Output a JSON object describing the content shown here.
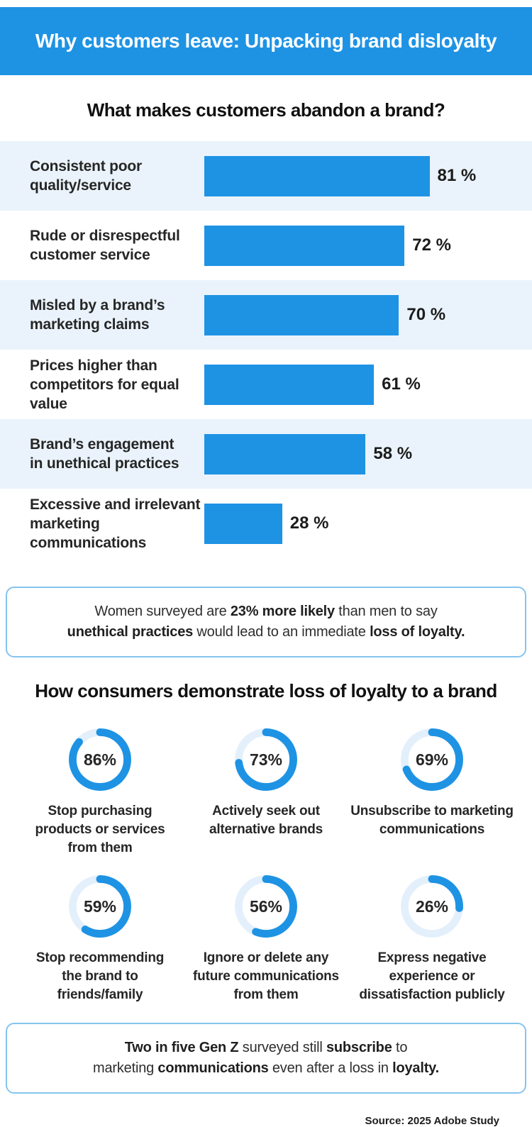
{
  "header": {
    "title": "Why customers leave: Unpacking brand disloyalty"
  },
  "bar_section": {
    "title": "What makes customers abandon a brand?"
  },
  "donut_section": {
    "title": "How consumers demonstrate loss of loyalty to a brand"
  },
  "chart_data": [
    {
      "type": "bar",
      "orientation": "horizontal",
      "title": "What makes customers abandon a brand?",
      "categories": [
        "Consistent poor quality/service",
        "Rude or disrespectful customer service",
        "Misled by a brand’s marketing claims",
        "Prices higher than competitors for equal value",
        "Brand’s engagement in unethical practices",
        "Excessive and irrelevant marketing communications"
      ],
      "category_lines": [
        [
          "Consistent poor",
          "quality/service"
        ],
        [
          "Rude or disrespectful",
          "customer service"
        ],
        [
          "Misled by a brand’s",
          "marketing claims"
        ],
        [
          "Prices higher than",
          "competitors for equal value"
        ],
        [
          "Brand’s engagement",
          "in unethical practices"
        ],
        [
          "Excessive and irrelevant",
          "marketing communications"
        ]
      ],
      "values": [
        81,
        72,
        70,
        61,
        58,
        28
      ],
      "unit": "%",
      "value_label_suffix": " %",
      "xlim": [
        0,
        100
      ],
      "grid": false,
      "bar_color": "#1E93E4"
    },
    {
      "type": "pie",
      "variant": "donut-grid",
      "title": "How consumers demonstrate loss of loyalty to a brand",
      "values": [
        86,
        73,
        69,
        59,
        56,
        26
      ],
      "unit": "%",
      "labels": [
        "Stop purchasing products or services from them",
        "Actively seek out alternative brands",
        "Unsubscribe to marketing communications",
        "Stop recommending the brand to friends/family",
        "Ignore or delete any future communications from them",
        "Express negative experience or dissatisfaction publicly"
      ],
      "label_lines": [
        [
          "Stop purchasing",
          "products or services",
          "from them"
        ],
        [
          "Actively seek out",
          "alternative brands"
        ],
        [
          "Unsubscribe to marketing",
          "communications"
        ],
        [
          "Stop recommending",
          "the brand to",
          "friends/family"
        ],
        [
          "Ignore or delete any",
          "future communications",
          "from them"
        ],
        [
          "Express negative",
          "experience or",
          "dissatisfaction publicly"
        ]
      ],
      "arc_color": "#1E93E4",
      "track_color": "#E3F0FC",
      "legend": "none"
    }
  ],
  "callouts": [
    {
      "name": "women-unethical",
      "lines": [
        [
          {
            "t": "Women surveyed are ",
            "b": 0
          },
          {
            "t": "23% more likely",
            "b": 1
          },
          {
            "t": " than men to say",
            "b": 0
          }
        ],
        [
          {
            "t": "unethical practices",
            "b": 1
          },
          {
            "t": " would lead to an immediate ",
            "b": 0
          },
          {
            "t": "loss of loyalty.",
            "b": 1
          }
        ]
      ]
    },
    {
      "name": "genz-subscribe",
      "lines": [
        [
          {
            "t": "Two in five Gen Z",
            "b": 1
          },
          {
            "t": " surveyed still ",
            "b": 0
          },
          {
            "t": "subscribe",
            "b": 1
          },
          {
            "t": " to",
            "b": 0
          }
        ],
        [
          {
            "t": "marketing ",
            "b": 0
          },
          {
            "t": "communications",
            "b": 1
          },
          {
            "t": " even after a loss in ",
            "b": 0
          },
          {
            "t": "loyalty.",
            "b": 1
          }
        ]
      ]
    }
  ],
  "source": "Source: 2025 Adobe Study",
  "colors": {
    "accent": "#1E93E4",
    "row_alt": "#EAF3FB",
    "donut_track": "#E3F0FC",
    "callout_border": "#85C4EF",
    "text": "#262626"
  }
}
